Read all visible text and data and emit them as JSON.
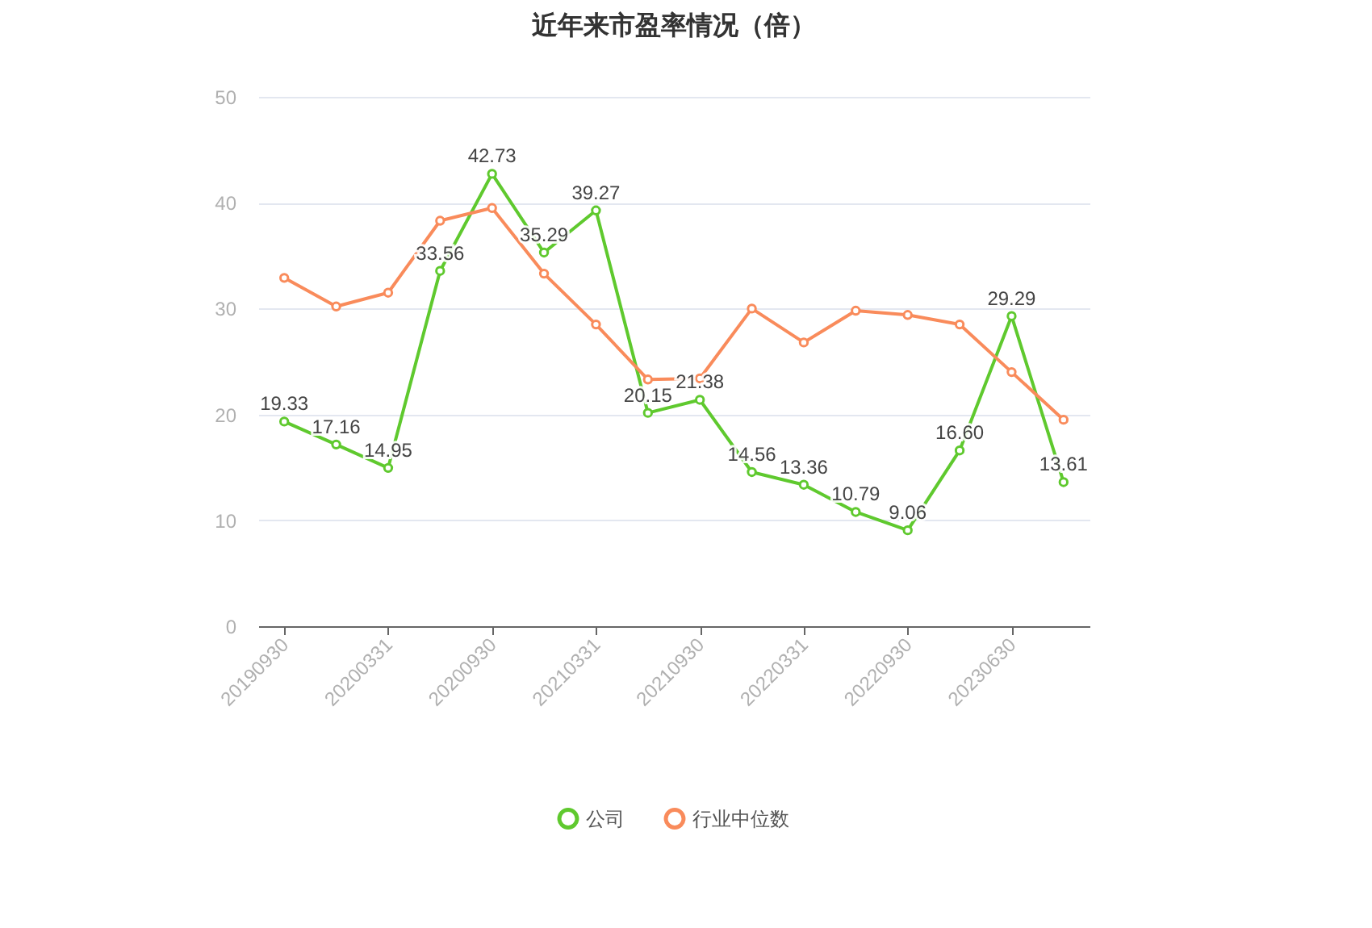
{
  "chart_data": {
    "type": "line",
    "title": "近年来市盈率情况（倍）",
    "categories": [
      "20190930",
      null,
      "20200331",
      null,
      "20200930",
      null,
      "20210331",
      null,
      "20210930",
      null,
      "20220331",
      null,
      "20220930",
      null,
      "20230630",
      null
    ],
    "series": [
      {
        "name": "公司",
        "color": "#5fc92e",
        "values": [
          19.33,
          17.16,
          14.95,
          33.56,
          42.73,
          35.29,
          39.27,
          20.15,
          21.38,
          14.56,
          13.36,
          10.79,
          9.06,
          16.6,
          29.29,
          13.61
        ],
        "value_labels": [
          "19.33",
          "17.16",
          "14.95",
          "33.56",
          "42.73",
          "35.29",
          "39.27",
          "20.15",
          "21.38",
          "14.56",
          "13.36",
          "10.79",
          "9.06",
          "16.60",
          "29.29",
          "13.61"
        ]
      },
      {
        "name": "行业中位数",
        "color": "#f98b5b",
        "values": [
          32.9,
          30.2,
          31.5,
          38.3,
          39.5,
          33.3,
          28.5,
          23.3,
          23.4,
          30.0,
          26.8,
          29.8,
          29.4,
          28.5,
          24.0,
          19.5
        ]
      }
    ],
    "ylim": [
      0,
      50
    ],
    "yticks": [
      0,
      10,
      20,
      30,
      40,
      50
    ],
    "grid": "y",
    "legend": "bottom",
    "marker": "circle",
    "line_style": "solid"
  }
}
